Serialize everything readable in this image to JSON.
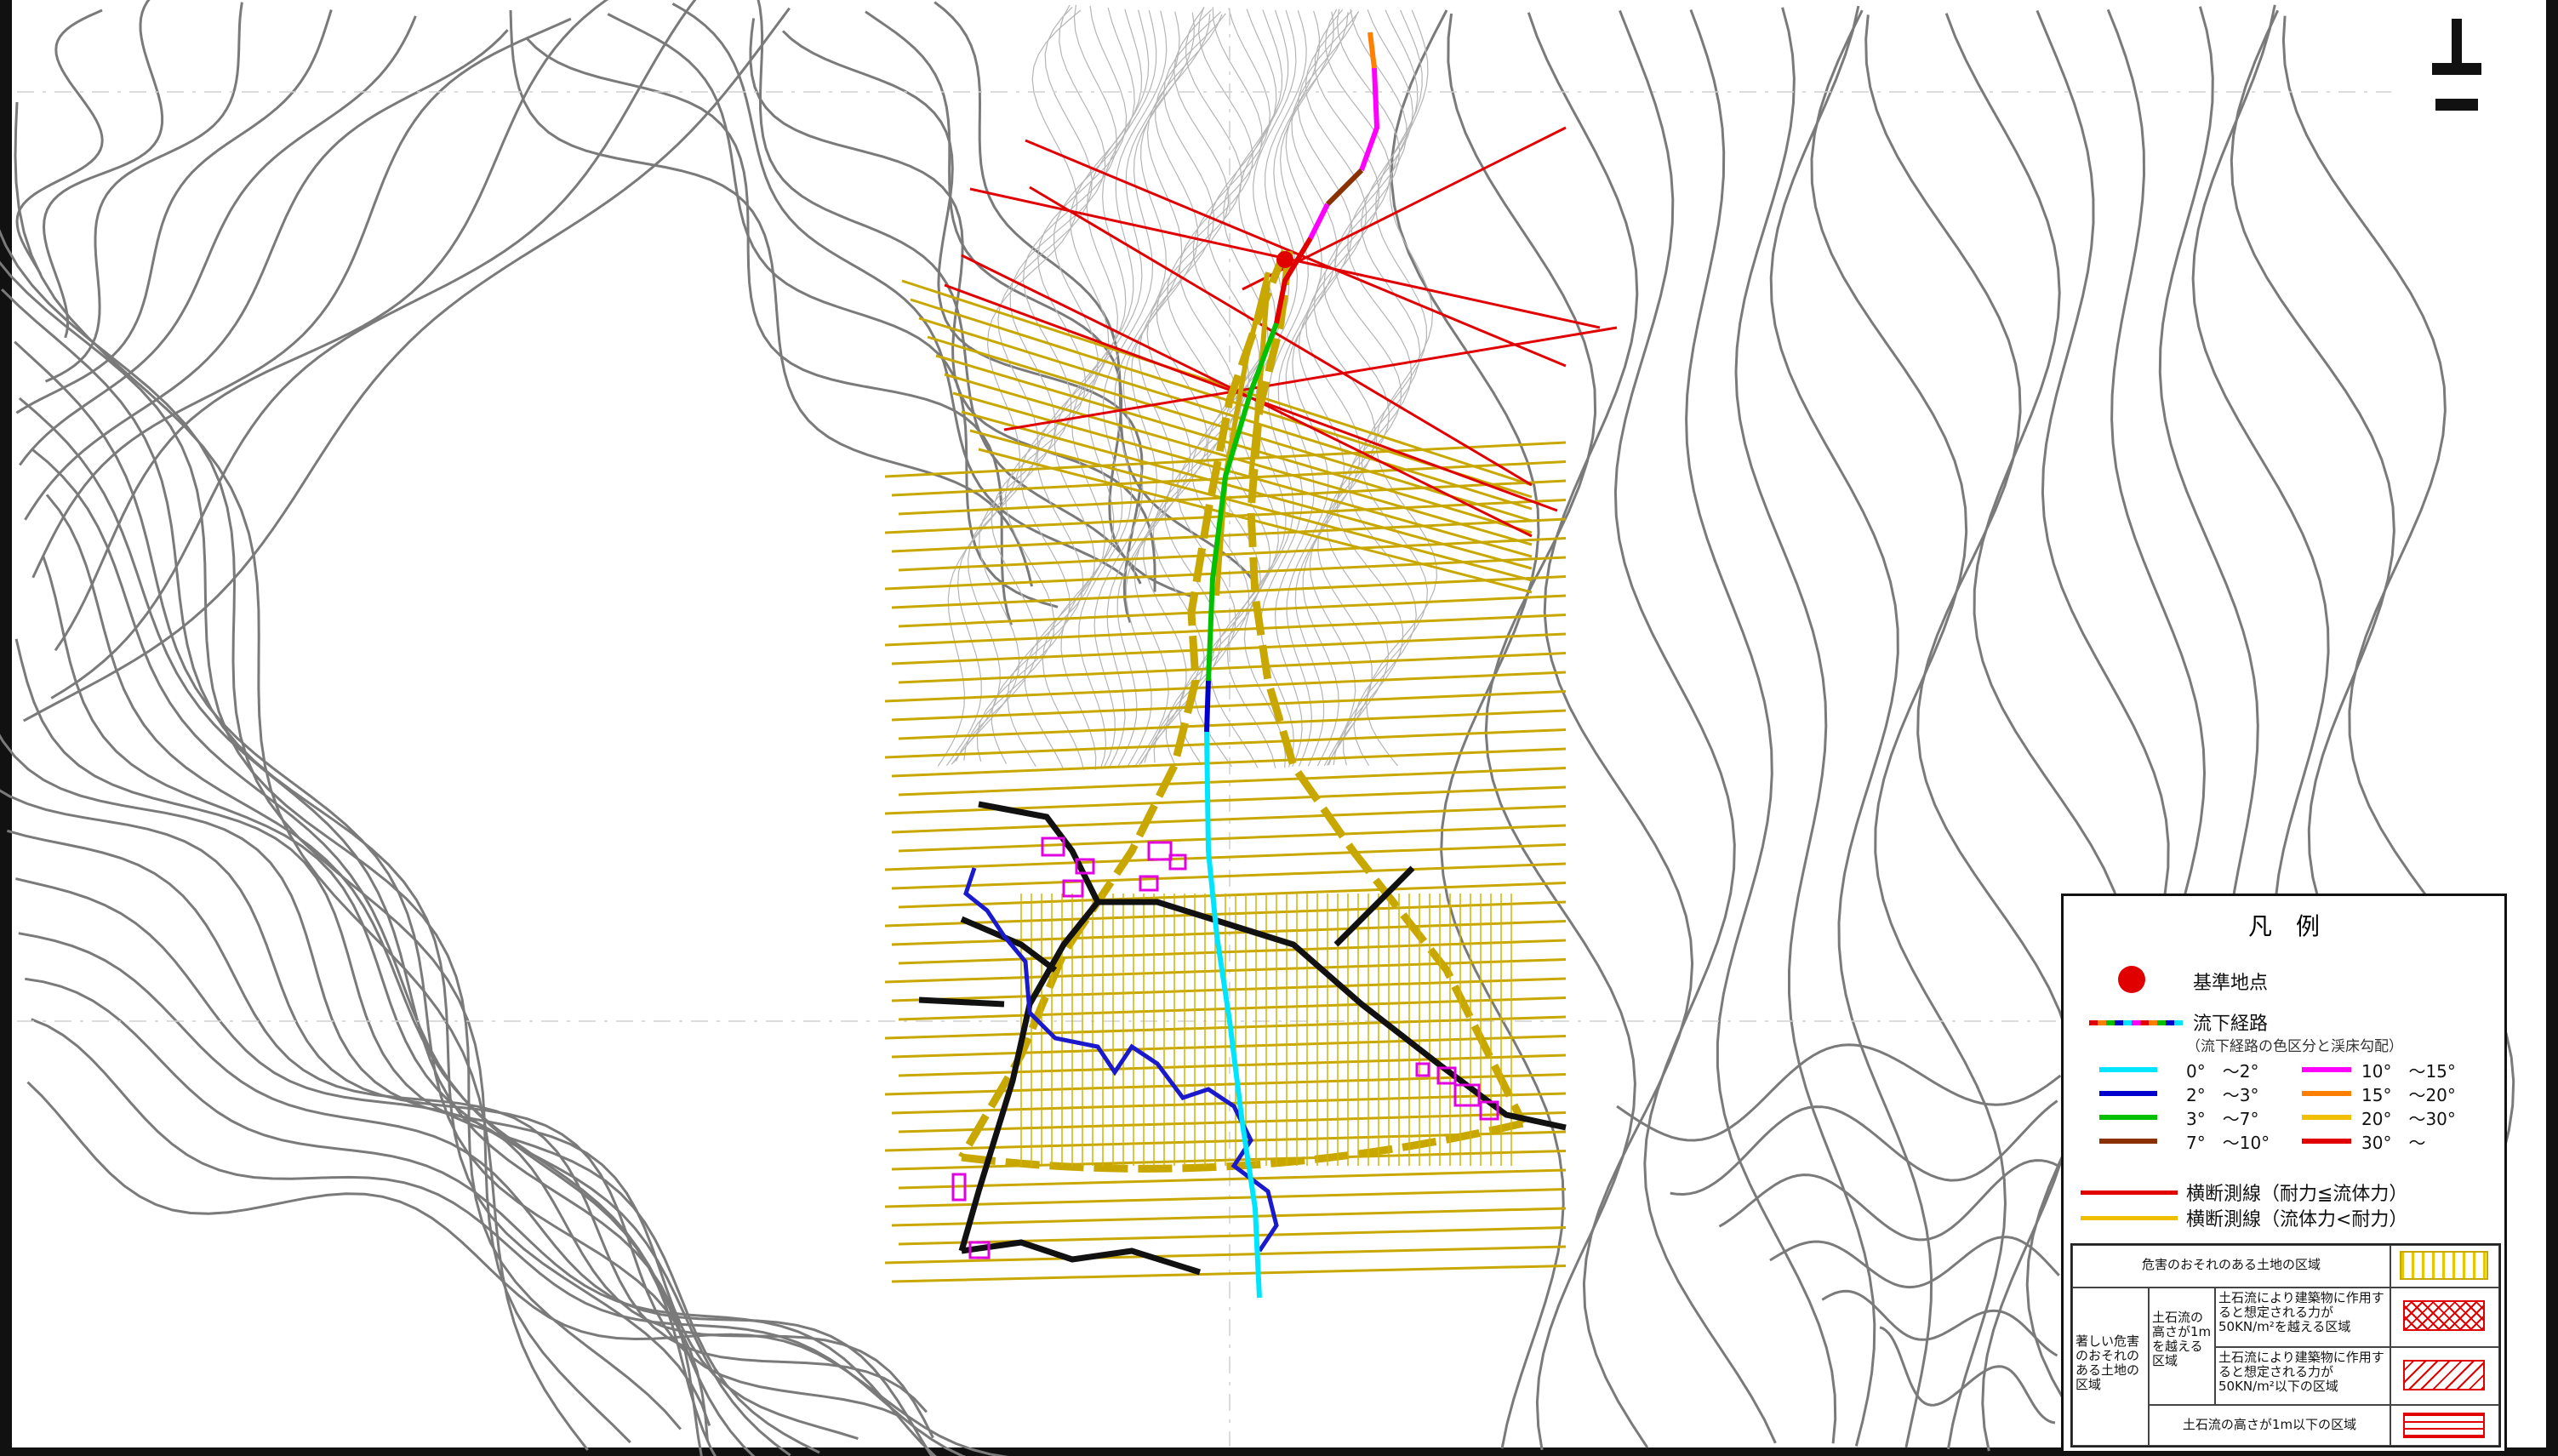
{
  "north_arrow": {
    "label": "N"
  },
  "map": {
    "background": "#ffffff",
    "contour_color": "#7a7a7a",
    "colors": {
      "red_line": "#e00000",
      "yellow_line": "#c8a800",
      "zone_border": "#c8a800",
      "river": "#1a1acc",
      "road": "#111111",
      "building": "#e000e0"
    }
  },
  "legend": {
    "title": "凡　例",
    "base_point": "基準地点",
    "flow_path": "流下経路",
    "flow_path_note": "（流下経路の色区分と渓床勾配）",
    "slopes": [
      {
        "label": "0°　～2°",
        "color": "#00e5ff"
      },
      {
        "label": "2°　～3°",
        "color": "#0000cc"
      },
      {
        "label": "3°　～7°",
        "color": "#00c000"
      },
      {
        "label": "7°　～10°",
        "color": "#8b3000"
      },
      {
        "label": "10°　～15°",
        "color": "#ff00ff"
      },
      {
        "label": "15°　～20°",
        "color": "#ff7f00"
      },
      {
        "label": "20°　～30°",
        "color": "#f0c000"
      },
      {
        "label": "30°　～",
        "color": "#e00000"
      }
    ],
    "section_red": "横断測線（耐力≦流体力）",
    "section_yellow": "横断測線（流体力<耐力）",
    "table": {
      "zone_caution": "危害のおそれのある土地の区域",
      "zone_severe": "著しい危害のおそれのある土地の区域",
      "height_over": "土石流の高さが1mを越える区域",
      "force_over": "土石流により建築物に作用すると想定される力が50KN/m²を越える区域",
      "force_under": "土石流により建築物に作用すると想定される力が50KN/m²以下の区域",
      "height_under": "土石流の高さが1m以下の区域"
    }
  }
}
